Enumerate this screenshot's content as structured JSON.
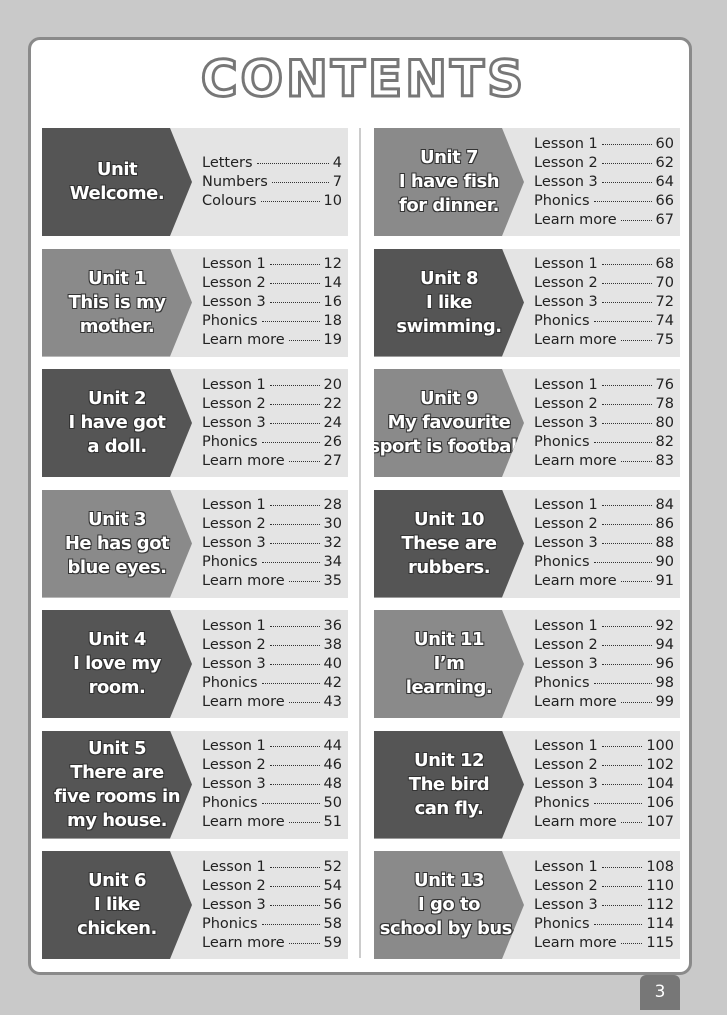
{
  "header": {
    "title": "CONTENTS"
  },
  "units": [
    {
      "title": [
        "Unit",
        "Welcome."
      ],
      "lessons": [
        {
          "name": "Letters",
          "page": 4
        },
        {
          "name": "Numbers",
          "page": 7
        },
        {
          "name": "Colours",
          "page": 10
        }
      ]
    },
    {
      "title": [
        "Unit 1",
        "This is my",
        "mother."
      ],
      "lessons": [
        {
          "name": "Lesson 1",
          "page": 12
        },
        {
          "name": "Lesson 2",
          "page": 14
        },
        {
          "name": "Lesson 3",
          "page": 16
        },
        {
          "name": "Phonics",
          "page": 18
        },
        {
          "name": "Learn more",
          "page": 19
        }
      ]
    },
    {
      "title": [
        "Unit 2",
        "I have got",
        "a doll."
      ],
      "lessons": [
        {
          "name": "Lesson 1",
          "page": 20
        },
        {
          "name": "Lesson 2",
          "page": 22
        },
        {
          "name": "Lesson 3",
          "page": 24
        },
        {
          "name": "Phonics",
          "page": 26
        },
        {
          "name": "Learn more",
          "page": 27
        }
      ]
    },
    {
      "title": [
        "Unit 3",
        "He has got",
        "blue eyes."
      ],
      "lessons": [
        {
          "name": "Lesson 1",
          "page": 28
        },
        {
          "name": "Lesson 2",
          "page": 30
        },
        {
          "name": "Lesson 3",
          "page": 32
        },
        {
          "name": "Phonics",
          "page": 34
        },
        {
          "name": "Learn more",
          "page": 35
        }
      ]
    },
    {
      "title": [
        "Unit 4",
        "I love my",
        "room."
      ],
      "lessons": [
        {
          "name": "Lesson 1",
          "page": 36
        },
        {
          "name": "Lesson 2",
          "page": 38
        },
        {
          "name": "Lesson 3",
          "page": 40
        },
        {
          "name": "Phonics",
          "page": 42
        },
        {
          "name": "Learn more",
          "page": 43
        }
      ]
    },
    {
      "title": [
        "Unit 5",
        "There are",
        "five rooms in",
        "my house."
      ],
      "lessons": [
        {
          "name": "Lesson 1",
          "page": 44
        },
        {
          "name": "Lesson 2",
          "page": 46
        },
        {
          "name": "Lesson 3",
          "page": 48
        },
        {
          "name": "Phonics",
          "page": 50
        },
        {
          "name": "Learn more",
          "page": 51
        }
      ]
    },
    {
      "title": [
        "Unit 6",
        "I like",
        "chicken."
      ],
      "lessons": [
        {
          "name": "Lesson 1",
          "page": 52
        },
        {
          "name": "Lesson 2",
          "page": 54
        },
        {
          "name": "Lesson 3",
          "page": 56
        },
        {
          "name": "Phonics",
          "page": 58
        },
        {
          "name": "Learn more",
          "page": 59
        }
      ]
    },
    {
      "title": [
        "Unit 7",
        "I have fish",
        "for dinner."
      ],
      "lessons": [
        {
          "name": "Lesson 1",
          "page": 60
        },
        {
          "name": "Lesson 2",
          "page": 62
        },
        {
          "name": "Lesson 3",
          "page": 64
        },
        {
          "name": "Phonics",
          "page": 66
        },
        {
          "name": "Learn more",
          "page": 67
        }
      ]
    },
    {
      "title": [
        "Unit 8",
        "I like",
        "swimming."
      ],
      "lessons": [
        {
          "name": "Lesson 1",
          "page": 68
        },
        {
          "name": "Lesson 2",
          "page": 70
        },
        {
          "name": "Lesson 3",
          "page": 72
        },
        {
          "name": "Phonics",
          "page": 74
        },
        {
          "name": "Learn more",
          "page": 75
        }
      ]
    },
    {
      "title": [
        "Unit 9",
        "My favourite",
        "sport is football."
      ],
      "lessons": [
        {
          "name": "Lesson 1",
          "page": 76
        },
        {
          "name": "Lesson 2",
          "page": 78
        },
        {
          "name": "Lesson 3",
          "page": 80
        },
        {
          "name": "Phonics",
          "page": 82
        },
        {
          "name": "Learn more",
          "page": 83
        }
      ]
    },
    {
      "title": [
        "Unit 10",
        "These are",
        "rubbers."
      ],
      "lessons": [
        {
          "name": "Lesson 1",
          "page": 84
        },
        {
          "name": "Lesson 2",
          "page": 86
        },
        {
          "name": "Lesson 3",
          "page": 88
        },
        {
          "name": "Phonics",
          "page": 90
        },
        {
          "name": "Learn more",
          "page": 91
        }
      ]
    },
    {
      "title": [
        "Unit 11",
        "I’m",
        "learning."
      ],
      "lessons": [
        {
          "name": "Lesson 1",
          "page": 92
        },
        {
          "name": "Lesson 2",
          "page": 94
        },
        {
          "name": "Lesson 3",
          "page": 96
        },
        {
          "name": "Phonics",
          "page": 98
        },
        {
          "name": "Learn more",
          "page": 99
        }
      ]
    },
    {
      "title": [
        "Unit 12",
        "The bird",
        "can fly."
      ],
      "lessons": [
        {
          "name": "Lesson 1",
          "page": 100
        },
        {
          "name": "Lesson 2",
          "page": 102
        },
        {
          "name": "Lesson 3",
          "page": 104
        },
        {
          "name": "Phonics",
          "page": 106
        },
        {
          "name": "Learn more",
          "page": 107
        }
      ]
    },
    {
      "title": [
        "Unit 13",
        "I go to",
        "school by bus."
      ],
      "lessons": [
        {
          "name": "Lesson 1",
          "page": 108
        },
        {
          "name": "Lesson 2",
          "page": 110
        },
        {
          "name": "Lesson 3",
          "page": 112
        },
        {
          "name": "Phonics",
          "page": 114
        },
        {
          "name": "Learn more",
          "page": 115
        }
      ]
    }
  ],
  "footer": {
    "page_number": 3
  }
}
